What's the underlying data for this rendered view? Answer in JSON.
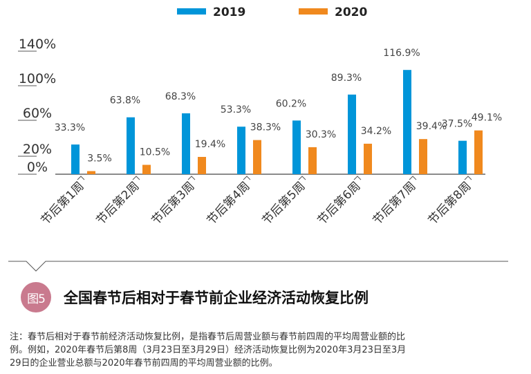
{
  "chart_data": {
    "type": "bar",
    "categories": [
      "节后第1周",
      "节后第2周",
      "节后第3周",
      "节后第4周",
      "节后第5周",
      "节后第6周",
      "节后第7周",
      "节后第8周"
    ],
    "series": [
      {
        "name": "2019",
        "color": "#0095d9",
        "values": [
          33.3,
          63.8,
          68.3,
          53.3,
          60.2,
          89.3,
          116.9,
          37.5
        ],
        "labels": [
          "33.3%",
          "63.8%",
          "68.3%",
          "53.3%",
          "60.2%",
          "89.3%",
          "116.9%",
          "37.5%"
        ]
      },
      {
        "name": "2020",
        "color": "#f0891e",
        "values": [
          3.5,
          10.5,
          19.4,
          38.3,
          30.3,
          34.2,
          39.4,
          49.1
        ],
        "labels": [
          "3.5%",
          "10.5%",
          "19.4%",
          "38.3%",
          "30.3%",
          "34.2%",
          "39.4%",
          "49.1%"
        ]
      }
    ],
    "y_tick_labels": [
      "140%",
      "100%",
      "60%",
      "20%",
      "0%"
    ],
    "ylim": [
      0,
      120
    ],
    "grid": false,
    "legend_position": "top-center"
  },
  "caption": {
    "badge": "图5",
    "title": "全国春节后相对于春节前企业经济活动恢复比例"
  },
  "note": [
    "注：春节后相对于春节前经济活动恢复比例，是指春节后周营业额与春节前四周的平均周营业额的比",
    "例。例如，2020年春节后第8周（3月23日至3月29日）经济活动恢复比例为2020年3月23日至3月",
    "29日的企业营业总额与2020年春节前四周的平均周营业额的比例。"
  ]
}
